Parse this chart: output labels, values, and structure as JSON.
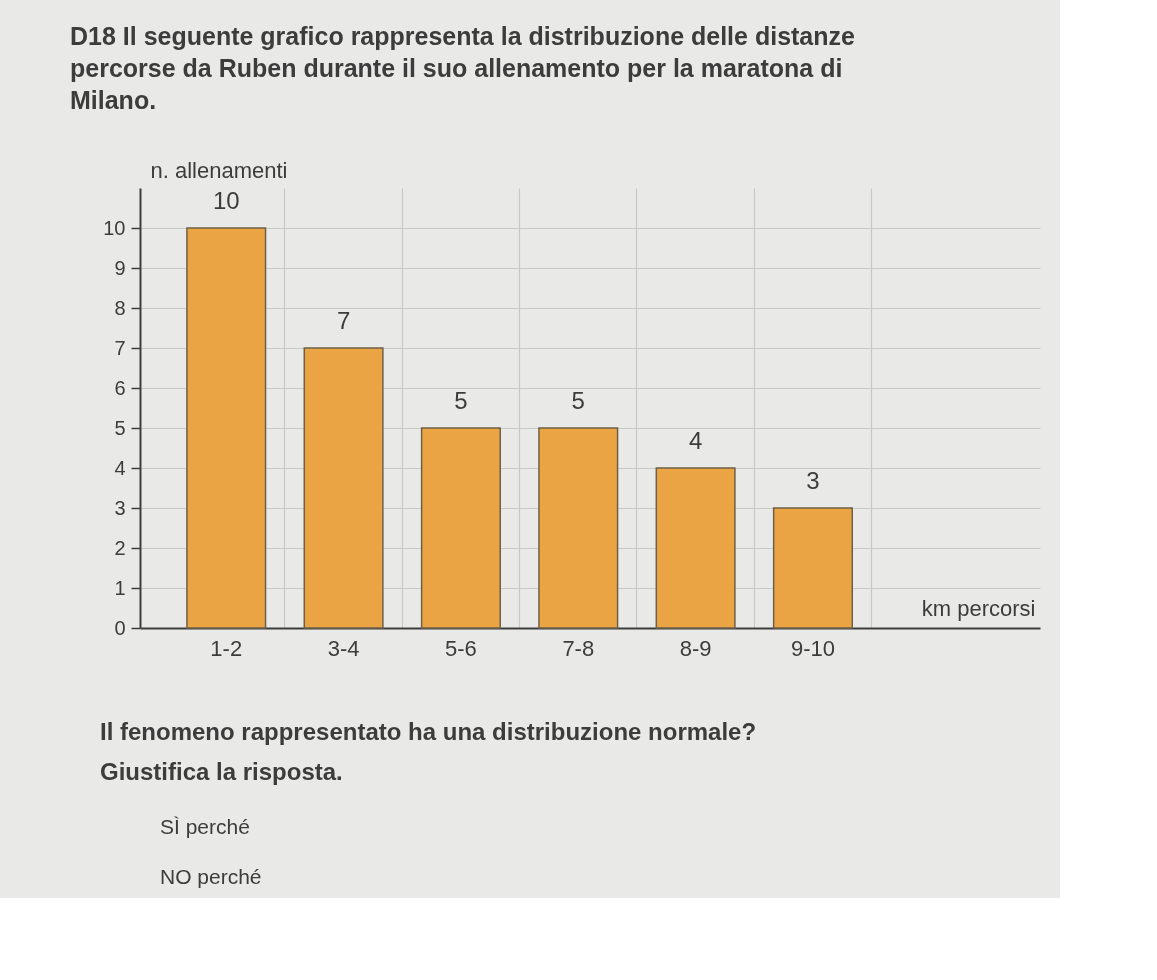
{
  "chart_data": {
    "type": "bar",
    "title": "D18 Il seguente grafico rappresenta la distribuzione delle distanze percorse da Ruben durante il suo allenamento per la maratona di Milano.",
    "xlabel": "km percorsi",
    "ylabel": "n. allenamenti",
    "categories": [
      "1-2",
      "3-4",
      "5-6",
      "7-8",
      "8-9",
      "9-10"
    ],
    "values": [
      10,
      7,
      5,
      5,
      4,
      3
    ],
    "color": "#eba443",
    "ylim": [
      0,
      11
    ],
    "yticks": [
      0,
      1,
      2,
      3,
      4,
      5,
      6,
      7,
      8,
      9,
      10
    ],
    "grid": true,
    "data_labels": true,
    "annotations": [
      "Il fenomeno rappresentato ha una distribuzione normale?",
      "Giustifica la risposta.",
      "SÌ perché",
      "NO perché"
    ]
  }
}
